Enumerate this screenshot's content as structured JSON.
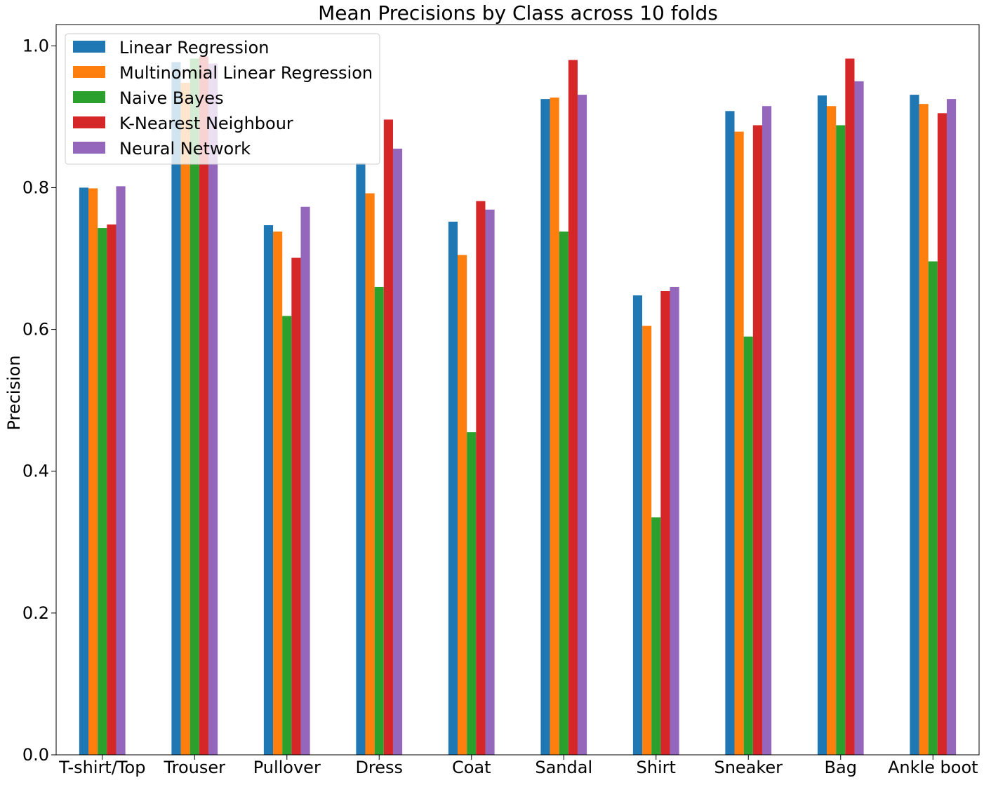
{
  "chart_data": {
    "type": "bar",
    "title": "Mean Precisions by Class across 10 folds",
    "xlabel": "",
    "ylabel": "Precision",
    "ylim": [
      0,
      1.03
    ],
    "yticks": [
      "0.0",
      "0.2",
      "0.4",
      "0.6",
      "0.8",
      "1.0"
    ],
    "grid": false,
    "legend_position": "top-left",
    "categories": [
      "T-shirt/Top",
      "Trouser",
      "Pullover",
      "Dress",
      "Coat",
      "Sandal",
      "Shirt",
      "Sneaker",
      "Bag",
      "Ankle boot"
    ],
    "series": [
      {
        "name": "Linear Regression",
        "color": "#1f77b4",
        "values": [
          0.8,
          0.977,
          0.747,
          0.835,
          0.752,
          0.925,
          0.648,
          0.908,
          0.93,
          0.931
        ]
      },
      {
        "name": "Multinomial Linear Regression",
        "color": "#ff7f0e",
        "values": [
          0.799,
          0.948,
          0.738,
          0.792,
          0.705,
          0.927,
          0.605,
          0.879,
          0.915,
          0.918
        ]
      },
      {
        "name": "Naive Bayes",
        "color": "#2ca02c",
        "values": [
          0.743,
          0.982,
          0.619,
          0.66,
          0.455,
          0.738,
          0.335,
          0.59,
          0.888,
          0.696
        ]
      },
      {
        "name": "K-Nearest Neighbour",
        "color": "#d62728",
        "values": [
          0.748,
          0.985,
          0.701,
          0.896,
          0.781,
          0.98,
          0.654,
          0.888,
          0.982,
          0.905
        ]
      },
      {
        "name": "Neural Network",
        "color": "#9467bd",
        "values": [
          0.802,
          0.975,
          0.773,
          0.855,
          0.769,
          0.931,
          0.66,
          0.915,
          0.95,
          0.925
        ]
      }
    ]
  }
}
